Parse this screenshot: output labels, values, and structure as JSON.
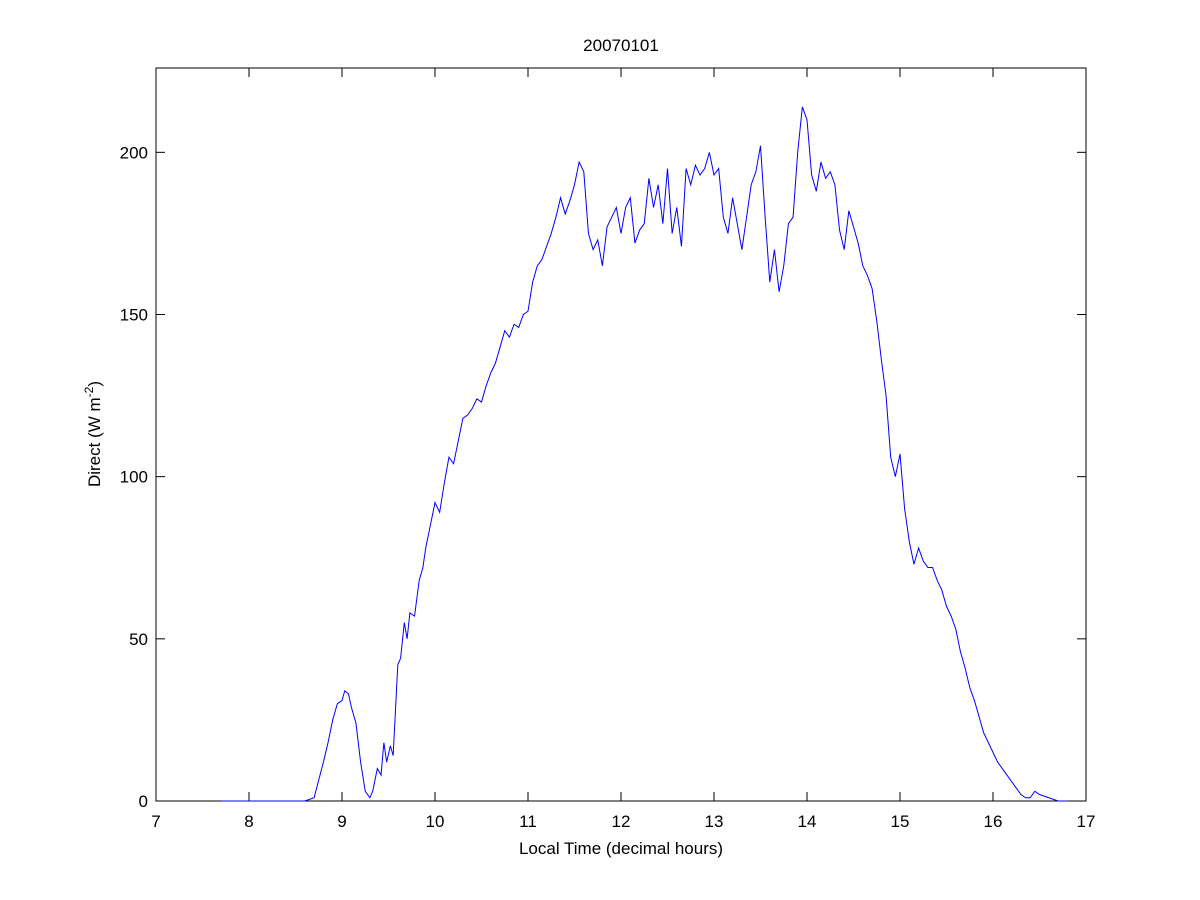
{
  "chart_data": {
    "type": "line",
    "title": "20070101",
    "xlabel": "Local Time (decimal hours)",
    "ylabel": {
      "text": "Direct (W m",
      "superscript": "-2",
      "suffix": ")"
    },
    "x": [
      7.7,
      8.6,
      8.7,
      8.8,
      8.85,
      8.9,
      8.95,
      9.0,
      9.03,
      9.07,
      9.1,
      9.15,
      9.2,
      9.25,
      9.3,
      9.33,
      9.38,
      9.42,
      9.45,
      9.48,
      9.52,
      9.55,
      9.6,
      9.63,
      9.67,
      9.7,
      9.73,
      9.78,
      9.83,
      9.87,
      9.9,
      9.95,
      10.0,
      10.05,
      10.1,
      10.15,
      10.2,
      10.25,
      10.3,
      10.35,
      10.4,
      10.45,
      10.5,
      10.55,
      10.6,
      10.65,
      10.7,
      10.75,
      10.8,
      10.85,
      10.9,
      10.95,
      11.0,
      11.05,
      11.1,
      11.15,
      11.2,
      11.25,
      11.3,
      11.35,
      11.4,
      11.45,
      11.5,
      11.55,
      11.6,
      11.65,
      11.7,
      11.75,
      11.8,
      11.85,
      11.9,
      11.95,
      12.0,
      12.05,
      12.1,
      12.15,
      12.2,
      12.25,
      12.3,
      12.35,
      12.4,
      12.45,
      12.5,
      12.55,
      12.6,
      12.65,
      12.7,
      12.75,
      12.8,
      12.85,
      12.9,
      12.95,
      13.0,
      13.05,
      13.1,
      13.15,
      13.2,
      13.25,
      13.3,
      13.35,
      13.4,
      13.45,
      13.5,
      13.55,
      13.6,
      13.65,
      13.7,
      13.75,
      13.8,
      13.85,
      13.9,
      13.95,
      14.0,
      14.05,
      14.1,
      14.15,
      14.2,
      14.25,
      14.3,
      14.35,
      14.4,
      14.45,
      14.5,
      14.55,
      14.6,
      14.65,
      14.7,
      14.75,
      14.8,
      14.85,
      14.9,
      14.95,
      15.0,
      15.05,
      15.1,
      15.15,
      15.2,
      15.25,
      15.3,
      15.35,
      15.4,
      15.45,
      15.5,
      15.55,
      15.6,
      15.65,
      15.7,
      15.75,
      15.8,
      15.85,
      15.9,
      15.95,
      16.0,
      16.05,
      16.1,
      16.15,
      16.2,
      16.25,
      16.3,
      16.35,
      16.4,
      16.45,
      16.5,
      16.6,
      16.7,
      16.8
    ],
    "series": [
      {
        "color": "#0000ff",
        "values": [
          0,
          0,
          1,
          12,
          18,
          25,
          30,
          31,
          34,
          33,
          29,
          24,
          12,
          3,
          1,
          3,
          10,
          8,
          18,
          12,
          17,
          14,
          42,
          44,
          55,
          50,
          58,
          57,
          68,
          72,
          78,
          85,
          92,
          89,
          98,
          106,
          104,
          111,
          118,
          119,
          121,
          124,
          123,
          128,
          132,
          135,
          140,
          145,
          143,
          147,
          146,
          150,
          151,
          160,
          165,
          167,
          171,
          175,
          180,
          186,
          181,
          185,
          190,
          197,
          194,
          175,
          170,
          173,
          165,
          177,
          180,
          183,
          175,
          183,
          186,
          172,
          176,
          178,
          192,
          183,
          190,
          178,
          195,
          175,
          183,
          171,
          195,
          190,
          196,
          193,
          195,
          200,
          193,
          195,
          180,
          175,
          186,
          178,
          170,
          180,
          190,
          194,
          202,
          180,
          160,
          170,
          157,
          165,
          178,
          180,
          200,
          214,
          210,
          193,
          188,
          197,
          192,
          194,
          190,
          176,
          170,
          182,
          177,
          172,
          165,
          162,
          158,
          148,
          136,
          125,
          106,
          100,
          107,
          90,
          80,
          73,
          78,
          74,
          72,
          72,
          68,
          65,
          60,
          57,
          53,
          46,
          41,
          35,
          31,
          26,
          21,
          18,
          15,
          12,
          10,
          8,
          6,
          4,
          2,
          1,
          1,
          3,
          2,
          1,
          0,
          0
        ]
      }
    ],
    "xlim": [
      7,
      17
    ],
    "xticks": [
      7,
      8,
      9,
      10,
      11,
      12,
      13,
      14,
      15,
      16,
      17
    ],
    "ylim": [
      0,
      226
    ],
    "yticks": [
      0,
      50,
      100,
      150,
      200
    ]
  }
}
